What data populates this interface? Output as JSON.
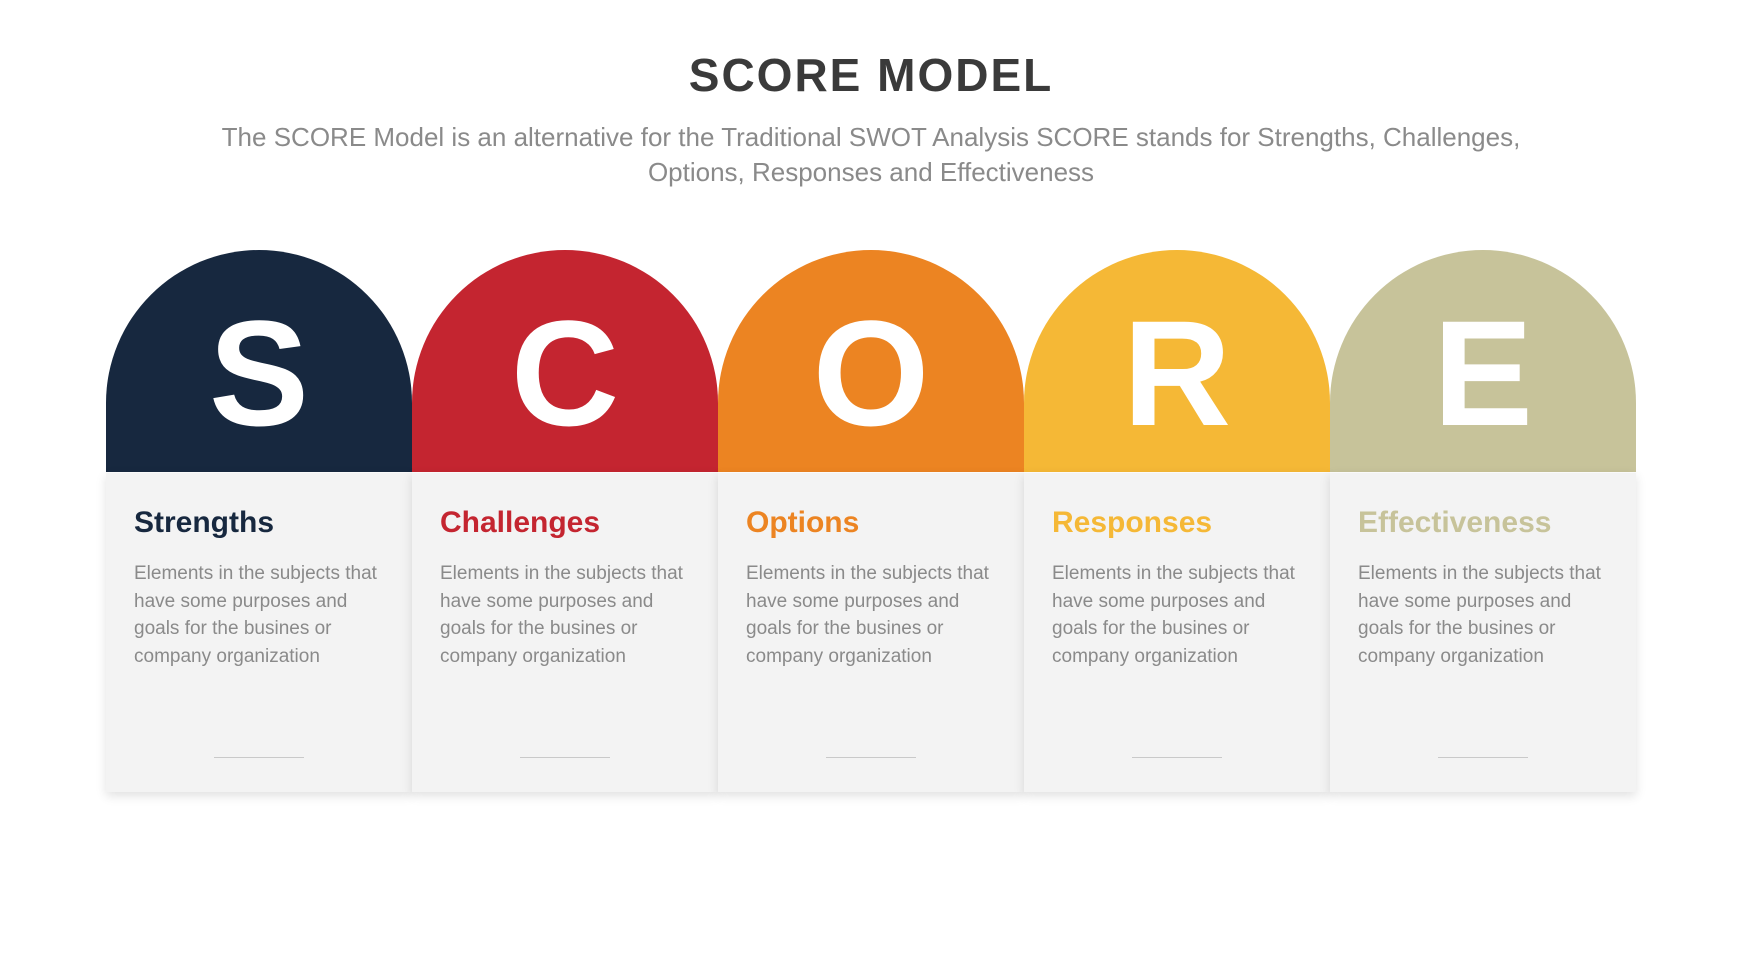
{
  "title": "SCORE MODEL",
  "subtitle": "The SCORE Model is an alternative for the Traditional SWOT Analysis SCORE stands for Strengths, Challenges, Options, Responses and Effectiveness",
  "title_color": "#3a3a3a",
  "subtitle_color": "#8a8a8a",
  "background_color": "#ffffff",
  "card_background": "#f3f3f3",
  "card_body_color": "#8a8a8a",
  "letter_color": "#ffffff",
  "title_fontsize": 46,
  "subtitle_fontsize": 26,
  "letter_fontsize": 150,
  "card_title_fontsize": 30,
  "card_body_fontsize": 19,
  "arch_width": 306,
  "arch_height": 222,
  "items": [
    {
      "letter": "S",
      "label": "Strengths",
      "body": "Elements in the subjects that have some purposes and goals for the  busines or company organization",
      "color": "#17283f"
    },
    {
      "letter": "C",
      "label": "Challenges",
      "body": "Elements in the subjects that have some purposes and goals for the  busines or company organization",
      "color": "#c42530"
    },
    {
      "letter": "O",
      "label": "Options",
      "body": "Elements in the subjects that have some purposes and goals for the  busines or company organization",
      "color": "#ec8422"
    },
    {
      "letter": "R",
      "label": "Responses",
      "body": "Elements in the subjects that have some purposes and goals for the  busines or company organization",
      "color": "#f5b836"
    },
    {
      "letter": "E",
      "label": "Effectiveness",
      "body": "Elements in the subjects that have some purposes and goals for the  busines or company organization",
      "color": "#c7c39a"
    }
  ]
}
